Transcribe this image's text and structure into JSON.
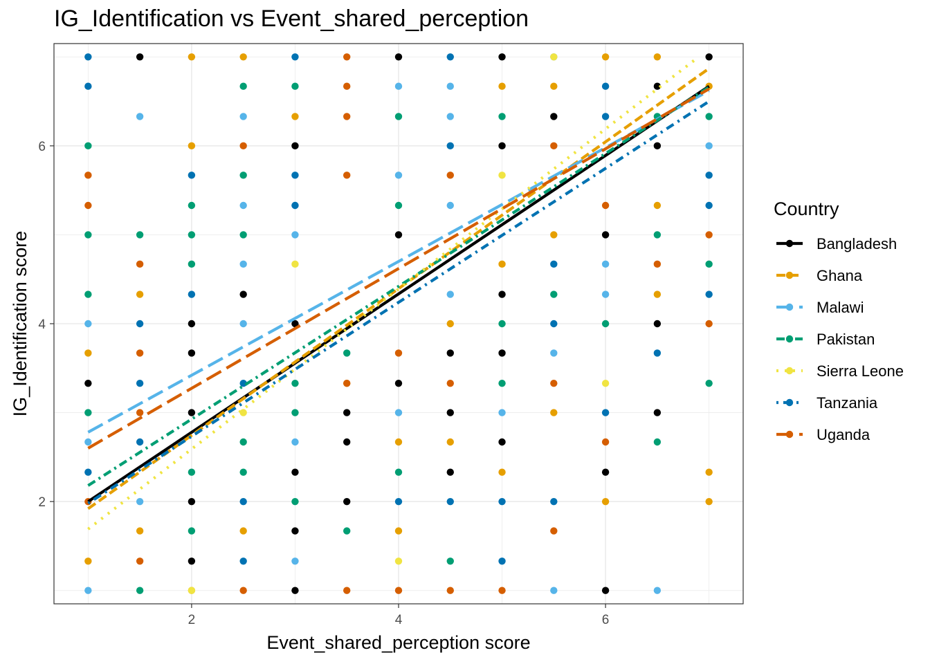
{
  "chart_data": {
    "type": "scatter",
    "title": "IG_Identification vs Event_shared_perception",
    "xlabel": "Event_shared_perception score",
    "ylabel": "IG_Identification score",
    "xlim": [
      0.67,
      7.33
    ],
    "ylim": [
      0.85,
      7.15
    ],
    "x_ticks": [
      2,
      4,
      6
    ],
    "y_ticks": [
      2,
      4,
      6
    ],
    "grid": true,
    "legend": {
      "title": "Country",
      "position": "right"
    },
    "series": [
      {
        "name": "Bangladesh",
        "color": "#000000",
        "dash": "solid",
        "fit": {
          "x": [
            1,
            7
          ],
          "y": [
            2.0,
            6.67
          ]
        },
        "points": [
          [
            1.5,
            7
          ],
          [
            4,
            7
          ],
          [
            5,
            7
          ],
          [
            7,
            7
          ],
          [
            6.5,
            6.67
          ],
          [
            5.5,
            6.33
          ],
          [
            3,
            6
          ],
          [
            5,
            6
          ],
          [
            6.5,
            6
          ],
          [
            4,
            5
          ],
          [
            6,
            5
          ],
          [
            2.5,
            4.33
          ],
          [
            5,
            4.33
          ],
          [
            2,
            4
          ],
          [
            3,
            4
          ],
          [
            6.5,
            4
          ],
          [
            2,
            3.67
          ],
          [
            4.5,
            3.67
          ],
          [
            5,
            3.67
          ],
          [
            1,
            3.33
          ],
          [
            4,
            3.33
          ],
          [
            2,
            3
          ],
          [
            3.5,
            3
          ],
          [
            4.5,
            3
          ],
          [
            6.5,
            3
          ],
          [
            3.5,
            2.67
          ],
          [
            5,
            2.67
          ],
          [
            3,
            2.33
          ],
          [
            4.5,
            2.33
          ],
          [
            6,
            2.33
          ],
          [
            2,
            2
          ],
          [
            3.5,
            2
          ],
          [
            3,
            1.67
          ],
          [
            2,
            1.33
          ],
          [
            3,
            1
          ],
          [
            6,
            1
          ]
        ]
      },
      {
        "name": "Ghana",
        "color": "#E69F00",
        "dash": "dashed",
        "fit": {
          "x": [
            1,
            7
          ],
          "y": [
            1.92,
            6.87
          ]
        },
        "points": [
          [
            2,
            7
          ],
          [
            2.5,
            7
          ],
          [
            6,
            7
          ],
          [
            6.5,
            7
          ],
          [
            5,
            6.67
          ],
          [
            5.5,
            6.67
          ],
          [
            7,
            6.67
          ],
          [
            3,
            6.33
          ],
          [
            2,
            6
          ],
          [
            6.5,
            5.33
          ],
          [
            5.5,
            5
          ],
          [
            5,
            4.67
          ],
          [
            1.5,
            4.33
          ],
          [
            6.5,
            4.33
          ],
          [
            4.5,
            4
          ],
          [
            1,
            3.67
          ],
          [
            3.5,
            3.33
          ],
          [
            5.5,
            3
          ],
          [
            4,
            2.67
          ],
          [
            4.5,
            2.67
          ],
          [
            5,
            2.33
          ],
          [
            7,
            2.33
          ],
          [
            6,
            2
          ],
          [
            7,
            2
          ],
          [
            1.5,
            1.67
          ],
          [
            2.5,
            1.67
          ],
          [
            4,
            1.67
          ],
          [
            1,
            1.33
          ],
          [
            2,
            1
          ]
        ]
      },
      {
        "name": "Malawi",
        "color": "#56B4E9",
        "dash": "longdash",
        "fit": {
          "x": [
            1,
            7
          ],
          "y": [
            2.78,
            6.62
          ]
        },
        "points": [
          [
            5.5,
            7
          ],
          [
            4,
            6.67
          ],
          [
            4.5,
            6.67
          ],
          [
            1.5,
            6.33
          ],
          [
            2.5,
            6.33
          ],
          [
            4.5,
            6.33
          ],
          [
            7,
            6
          ],
          [
            4,
            5.67
          ],
          [
            2.5,
            5.33
          ],
          [
            3,
            5.33
          ],
          [
            4.5,
            5.33
          ],
          [
            3,
            5
          ],
          [
            2.5,
            4.67
          ],
          [
            6,
            4.67
          ],
          [
            4.5,
            4.33
          ],
          [
            6,
            4.33
          ],
          [
            1,
            4
          ],
          [
            2.5,
            4
          ],
          [
            5.5,
            3.67
          ],
          [
            4,
            3
          ],
          [
            5,
            3
          ],
          [
            1,
            2.67
          ],
          [
            3,
            2.67
          ],
          [
            1.5,
            2
          ],
          [
            3,
            1.33
          ],
          [
            1,
            1
          ],
          [
            5.5,
            1
          ],
          [
            6.5,
            1
          ]
        ]
      },
      {
        "name": "Pakistan",
        "color": "#009E73",
        "dash": "dashdot",
        "fit": {
          "x": [
            1,
            7
          ],
          "y": [
            2.18,
            6.66
          ]
        },
        "points": [
          [
            2.5,
            6.67
          ],
          [
            3,
            6.67
          ],
          [
            4,
            6.33
          ],
          [
            5,
            6.33
          ],
          [
            6.5,
            6.33
          ],
          [
            7,
            6.33
          ],
          [
            1,
            6
          ],
          [
            2.5,
            5.67
          ],
          [
            2,
            5.33
          ],
          [
            4,
            5.33
          ],
          [
            1,
            5
          ],
          [
            1.5,
            5
          ],
          [
            2,
            5
          ],
          [
            2.5,
            5
          ],
          [
            6.5,
            5
          ],
          [
            2,
            4.67
          ],
          [
            7,
            4.67
          ],
          [
            1,
            4.33
          ],
          [
            5.5,
            4.33
          ],
          [
            5,
            4
          ],
          [
            6,
            4
          ],
          [
            3.5,
            3.67
          ],
          [
            3,
            3.33
          ],
          [
            5,
            3.33
          ],
          [
            7,
            3.33
          ],
          [
            1,
            3
          ],
          [
            3,
            3
          ],
          [
            2.5,
            2.67
          ],
          [
            6.5,
            2.67
          ],
          [
            2,
            2.33
          ],
          [
            2.5,
            2.33
          ],
          [
            4,
            2.33
          ],
          [
            3,
            2
          ],
          [
            2,
            1.67
          ],
          [
            3.5,
            1.67
          ],
          [
            4.5,
            1.33
          ],
          [
            1.5,
            1
          ]
        ]
      },
      {
        "name": "Sierra Leone",
        "color": "#F0E442",
        "dash": "dotted",
        "fit": {
          "x": [
            1,
            6.9
          ],
          "y": [
            1.69,
            7.0
          ]
        },
        "points": [
          [
            5.5,
            7
          ],
          [
            5,
            5.67
          ],
          [
            3,
            4.67
          ],
          [
            2.5,
            3
          ],
          [
            6,
            3.33
          ],
          [
            4,
            1.33
          ],
          [
            2,
            1
          ]
        ]
      },
      {
        "name": "Tanzania",
        "color": "#0072B2",
        "dash": "dotdash",
        "fit": {
          "x": [
            1,
            7
          ],
          "y": [
            1.98,
            6.5
          ]
        },
        "points": [
          [
            1,
            7
          ],
          [
            3,
            7
          ],
          [
            4.5,
            7
          ],
          [
            1,
            6.67
          ],
          [
            6,
            6.67
          ],
          [
            6,
            6.33
          ],
          [
            4.5,
            6
          ],
          [
            2,
            5.67
          ],
          [
            3,
            5.67
          ],
          [
            7,
            5.67
          ],
          [
            3,
            5.33
          ],
          [
            7,
            5.33
          ],
          [
            5.5,
            4.67
          ],
          [
            2,
            4.33
          ],
          [
            7,
            4.33
          ],
          [
            1.5,
            4
          ],
          [
            5.5,
            4
          ],
          [
            6.5,
            3.67
          ],
          [
            1.5,
            3.33
          ],
          [
            2.5,
            3.33
          ],
          [
            6,
            3
          ],
          [
            1.5,
            2.67
          ],
          [
            1,
            2.33
          ],
          [
            2.5,
            2
          ],
          [
            4,
            2
          ],
          [
            4.5,
            2
          ],
          [
            5,
            2
          ],
          [
            5.5,
            2
          ],
          [
            2.5,
            1.33
          ],
          [
            5,
            1.33
          ]
        ]
      },
      {
        "name": "Uganda",
        "color": "#D55E00",
        "dash": "longdash",
        "fit": {
          "x": [
            1,
            7
          ],
          "y": [
            2.6,
            6.64
          ]
        },
        "points": [
          [
            3.5,
            7
          ],
          [
            3.5,
            6.67
          ],
          [
            3.5,
            6.33
          ],
          [
            2.5,
            6
          ],
          [
            5.5,
            6
          ],
          [
            1,
            5.67
          ],
          [
            3.5,
            5.67
          ],
          [
            4.5,
            5.67
          ],
          [
            1,
            5.33
          ],
          [
            6,
            5.33
          ],
          [
            7,
            5
          ],
          [
            1.5,
            4.67
          ],
          [
            6.5,
            4.67
          ],
          [
            7,
            4
          ],
          [
            1.5,
            3.67
          ],
          [
            4,
            3.67
          ],
          [
            3.5,
            3.33
          ],
          [
            4.5,
            3.33
          ],
          [
            5.5,
            3.33
          ],
          [
            1.5,
            3
          ],
          [
            6,
            2.67
          ],
          [
            1,
            2
          ],
          [
            5.5,
            1.67
          ],
          [
            1.5,
            1.33
          ],
          [
            2.5,
            1
          ],
          [
            3.5,
            1
          ],
          [
            4,
            1
          ],
          [
            4.5,
            1
          ],
          [
            5,
            1
          ]
        ]
      }
    ]
  }
}
